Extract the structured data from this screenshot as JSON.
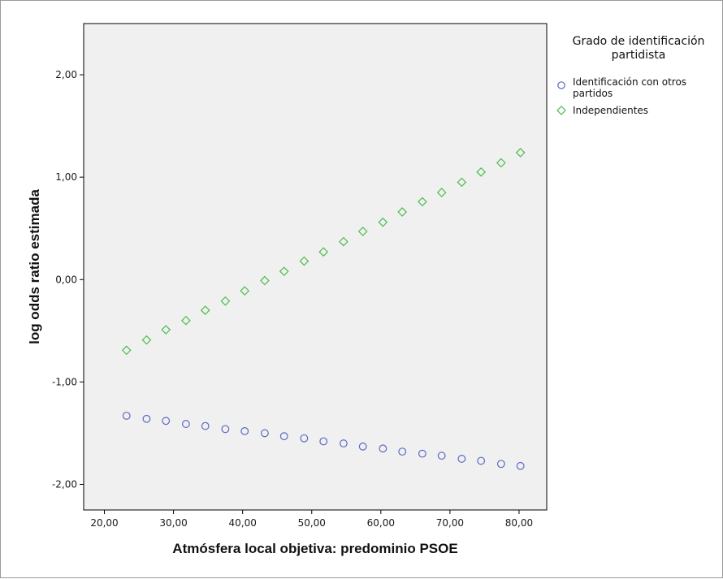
{
  "chart_data": {
    "type": "scatter",
    "xlabel": "Atmósfera local objetiva: predominio PSOE",
    "ylabel": "log odds ratio estimada",
    "xlim": [
      17,
      84
    ],
    "ylim": [
      -2.25,
      2.5
    ],
    "x_ticks": [
      "20,00",
      "30,00",
      "40,00",
      "50,00",
      "60,00",
      "70,00",
      "80,00"
    ],
    "x_tick_values": [
      20,
      30,
      40,
      50,
      60,
      70,
      80
    ],
    "y_ticks": [
      "2,00",
      "1,00",
      "0,00",
      "-1,00",
      "-2,00"
    ],
    "y_tick_values": [
      2,
      1,
      0,
      -1,
      -2
    ],
    "grid": false,
    "legend": {
      "position": "right",
      "title_lines": [
        "Grado de identificación",
        "partidista"
      ]
    },
    "x": [
      23.2,
      26.1,
      28.9,
      31.8,
      34.6,
      37.5,
      40.3,
      43.2,
      46.0,
      48.9,
      51.7,
      54.6,
      57.4,
      60.3,
      63.1,
      66.0,
      68.8,
      71.7,
      74.5,
      77.4,
      80.2
    ],
    "series": [
      {
        "name_lines": [
          "Identificación con otros",
          "partidos"
        ],
        "marker": "circle",
        "color": "#5b69c4",
        "values": [
          -1.33,
          -1.36,
          -1.38,
          -1.41,
          -1.43,
          -1.46,
          -1.48,
          -1.5,
          -1.53,
          -1.55,
          -1.58,
          -1.6,
          -1.63,
          -1.65,
          -1.68,
          -1.7,
          -1.72,
          -1.75,
          -1.77,
          -1.8,
          -1.82
        ]
      },
      {
        "name_lines": [
          "Independientes"
        ],
        "marker": "diamond",
        "color": "#4bbd4b",
        "values": [
          -0.69,
          -0.59,
          -0.49,
          -0.4,
          -0.3,
          -0.21,
          -0.11,
          -0.01,
          0.08,
          0.18,
          0.27,
          0.37,
          0.47,
          0.56,
          0.66,
          0.76,
          0.85,
          0.95,
          1.05,
          1.14,
          1.24
        ]
      }
    ]
  }
}
